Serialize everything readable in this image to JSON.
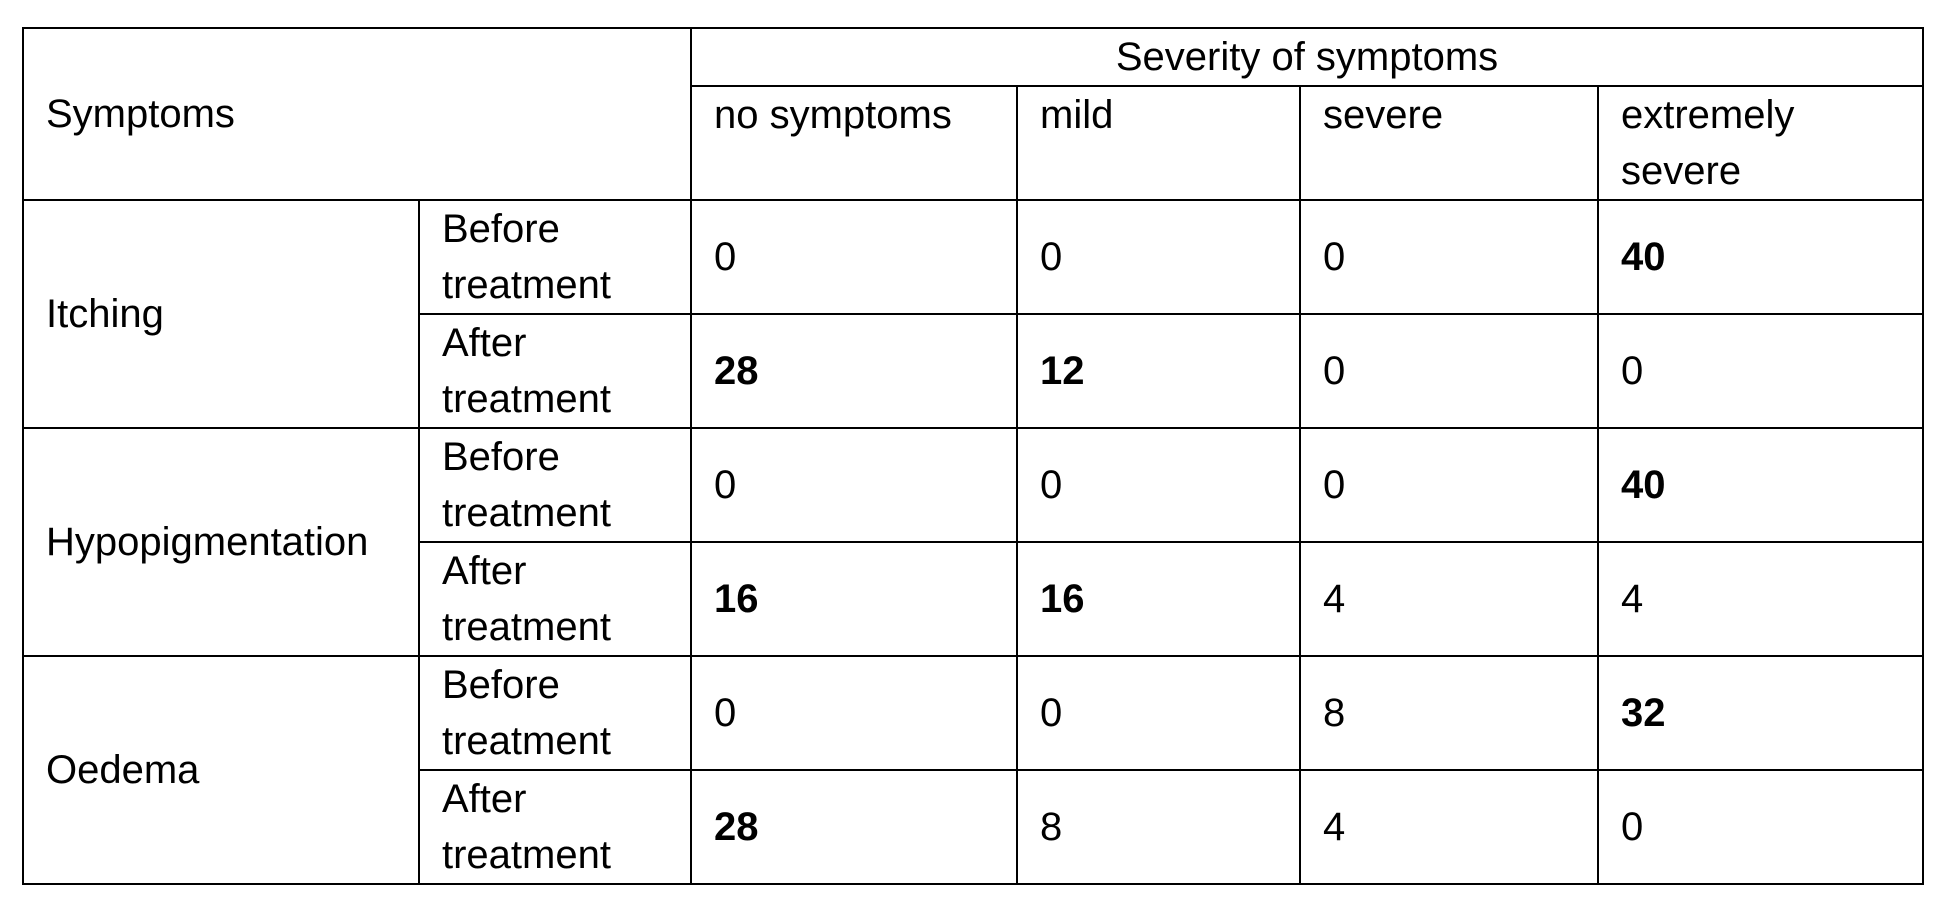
{
  "table": {
    "symptoms_header": "Symptoms",
    "severity_header": "Severity of symptoms",
    "severity_columns": [
      "no symptoms",
      "mild",
      "severe",
      "extremely severe"
    ],
    "groups": [
      {
        "symptom": "Itching",
        "rows": [
          {
            "phase": "Before treatment",
            "values": [
              "0",
              "0",
              "0",
              "40"
            ],
            "bold": [
              false,
              false,
              false,
              true
            ]
          },
          {
            "phase": "After treatment",
            "values": [
              "28",
              "12",
              "0",
              "0"
            ],
            "bold": [
              true,
              true,
              false,
              false
            ]
          }
        ]
      },
      {
        "symptom": "Hypopigmentation",
        "rows": [
          {
            "phase": "Before treatment",
            "values": [
              "0",
              "0",
              "0",
              "40"
            ],
            "bold": [
              false,
              false,
              false,
              true
            ]
          },
          {
            "phase": "After treatment",
            "values": [
              "16",
              "16",
              "4",
              "4"
            ],
            "bold": [
              true,
              true,
              false,
              false
            ]
          }
        ]
      },
      {
        "symptom": "Oedema",
        "rows": [
          {
            "phase": "Before treatment",
            "values": [
              "0",
              "0",
              "8",
              "32"
            ],
            "bold": [
              false,
              false,
              false,
              true
            ]
          },
          {
            "phase": "After treatment",
            "values": [
              "28",
              "8",
              "4",
              "0"
            ],
            "bold": [
              true,
              false,
              false,
              false
            ]
          }
        ]
      }
    ]
  }
}
